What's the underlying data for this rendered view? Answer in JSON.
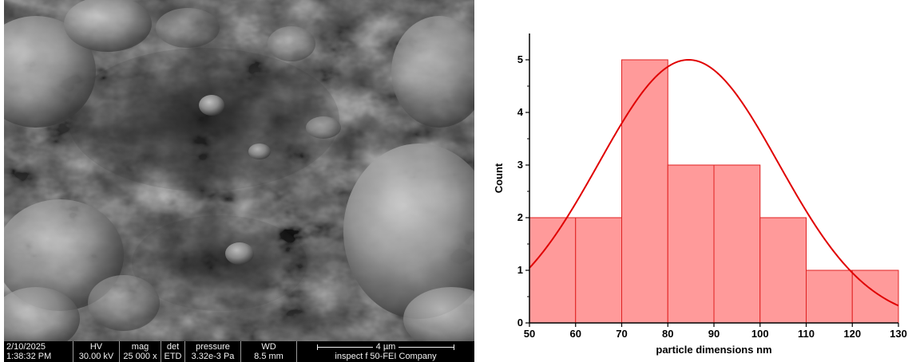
{
  "sem": {
    "info_bar": {
      "date": "2/10/2025",
      "time": "1:38:32 PM",
      "hv_label": "HV",
      "hv_value": "30.00 kV",
      "mag_label": "mag",
      "mag_value": "25 000 x",
      "det_label": "det",
      "det_value": "ETD",
      "pressure_label": "pressure",
      "pressure_value": "3.32e-3 Pa",
      "wd_label": "WD",
      "wd_value": "8.5 mm",
      "scale_label": "4 µm",
      "instrument": "inspect f 50-FEI Company"
    }
  },
  "chart_data": {
    "type": "bar",
    "subtype": "histogram-with-normal-fit",
    "xlabel": "particle dimensions nm",
    "ylabel": "Count",
    "xlim": [
      50,
      130
    ],
    "ylim": [
      0,
      5.5
    ],
    "bins": [
      {
        "start": 50,
        "end": 60,
        "count": 2
      },
      {
        "start": 60,
        "end": 70,
        "count": 2
      },
      {
        "start": 70,
        "end": 80,
        "count": 5
      },
      {
        "start": 80,
        "end": 90,
        "count": 3
      },
      {
        "start": 90,
        "end": 100,
        "count": 3
      },
      {
        "start": 100,
        "end": 110,
        "count": 2
      },
      {
        "start": 110,
        "end": 120,
        "count": 1
      },
      {
        "start": 120,
        "end": 130,
        "count": 1
      }
    ],
    "fit": {
      "type": "normal",
      "mean": 84.5,
      "sd": 19.5,
      "peak": 5.0
    },
    "x_ticks": [
      50,
      60,
      70,
      80,
      90,
      100,
      110,
      120,
      130
    ],
    "y_ticks": [
      0,
      1,
      2,
      3,
      4,
      5
    ],
    "grid": false,
    "colors": {
      "bar_fill": "#ff9a9a",
      "bar_edge": "#e02020",
      "fit_line": "#e00000",
      "axis": "#000000"
    }
  }
}
